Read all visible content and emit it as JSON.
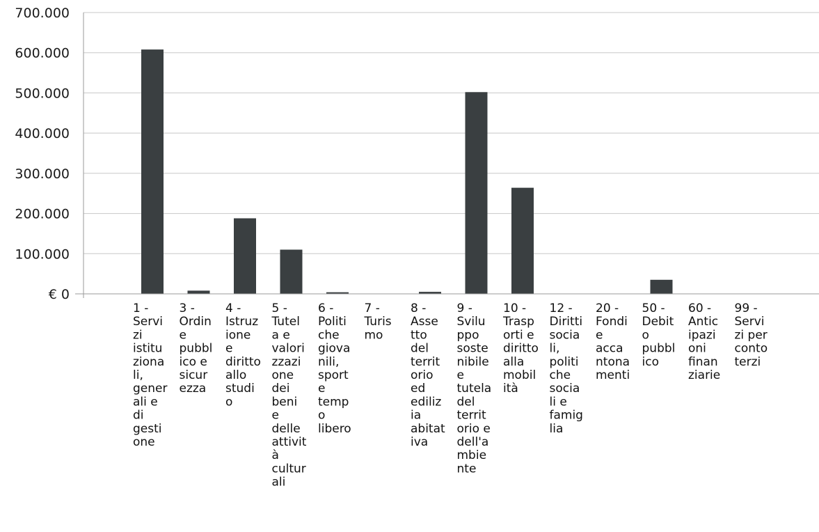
{
  "chart_data": {
    "type": "bar",
    "title": "",
    "xlabel": "",
    "ylabel": "",
    "ylim": [
      0,
      700000
    ],
    "y_ticks": [
      "€ 0",
      "100.000",
      "200.000",
      "300.000",
      "400.000",
      "500.000",
      "600.000",
      "700.000"
    ],
    "grid": true,
    "legend": "none",
    "bar_color": "#3a3f41",
    "categories": [
      "1 - Servizi istituzionali, generali e di gestione",
      "3 - Ordine pubblico e sicurezza",
      "4 - Istruzione e diritto allo studio",
      "5 - Tutela e valorizzazione dei beni e delle attività culturali",
      "6 - Politiche giovanili, sport e tempo libero",
      "7 - Turismo",
      "8 - Assetto del territorio ed edilizia abitativa",
      "9 - Sviluppo sostenibile e tutela del territorio e dell'ambiente",
      "10 - Trasporti e diritto alla mobilità",
      "12 - Diritti sociali, politiche sociali e famiglia",
      "20 - Fondi e accantonamenti",
      "50 - Debito pubblico",
      "60 - Anticipazioni finanziarie",
      "99 - Servizi per conto terzi"
    ],
    "category_lines": [
      [
        "1 -",
        "Servi",
        "zi",
        "istitu",
        "ziona",
        "li,",
        "gener",
        "ali e",
        "di",
        "gesti",
        "one"
      ],
      [
        "3 -",
        "Ordin",
        "e",
        "pubbl",
        "ico e",
        "sicur",
        "ezza"
      ],
      [
        "4 -",
        "Istruz",
        "ione",
        "e",
        "diritto",
        "allo",
        "studi",
        "o"
      ],
      [
        "5 -",
        "Tutel",
        "a e",
        "valori",
        "zzazi",
        "one",
        "dei",
        "beni",
        "e",
        "delle",
        "attivit",
        "à",
        "cultur",
        "ali"
      ],
      [
        "6 -",
        "Politi",
        "che",
        "giova",
        "nili,",
        "sport",
        "e",
        "temp",
        "o",
        "libero"
      ],
      [
        "7 -",
        "Turis",
        "mo"
      ],
      [
        "8 -",
        "Asse",
        "tto",
        "del",
        "territ",
        "orio",
        "ed",
        "ediliz",
        "ia",
        "abitat",
        "iva"
      ],
      [
        "9 -",
        "Svilu",
        "ppo",
        "soste",
        "nibile",
        "e",
        "tutela",
        "del",
        "territ",
        "orio e",
        "dell'a",
        "mbie",
        "nte"
      ],
      [
        "10 -",
        "Trasp",
        "orti e",
        "diritto",
        "alla",
        "mobil",
        "ità"
      ],
      [
        "12 -",
        "Diritti",
        "socia",
        "li,",
        "politi",
        "che",
        "socia",
        "li e",
        "famig",
        "lia"
      ],
      [
        "20 -",
        "Fondi",
        "e",
        "acca",
        "ntona",
        "menti"
      ],
      [
        "50 -",
        "Debit",
        "o",
        "pubbl",
        "ico"
      ],
      [
        "60 -",
        "Antic",
        "ipazi",
        "oni",
        "finan",
        "ziarie"
      ],
      [
        "99 -",
        "Servi",
        "zi per",
        "conto",
        "terzi"
      ]
    ],
    "values": [
      608000,
      8000,
      188000,
      110000,
      4000,
      0,
      5000,
      502000,
      264000,
      0,
      0,
      35000,
      0,
      0
    ]
  }
}
